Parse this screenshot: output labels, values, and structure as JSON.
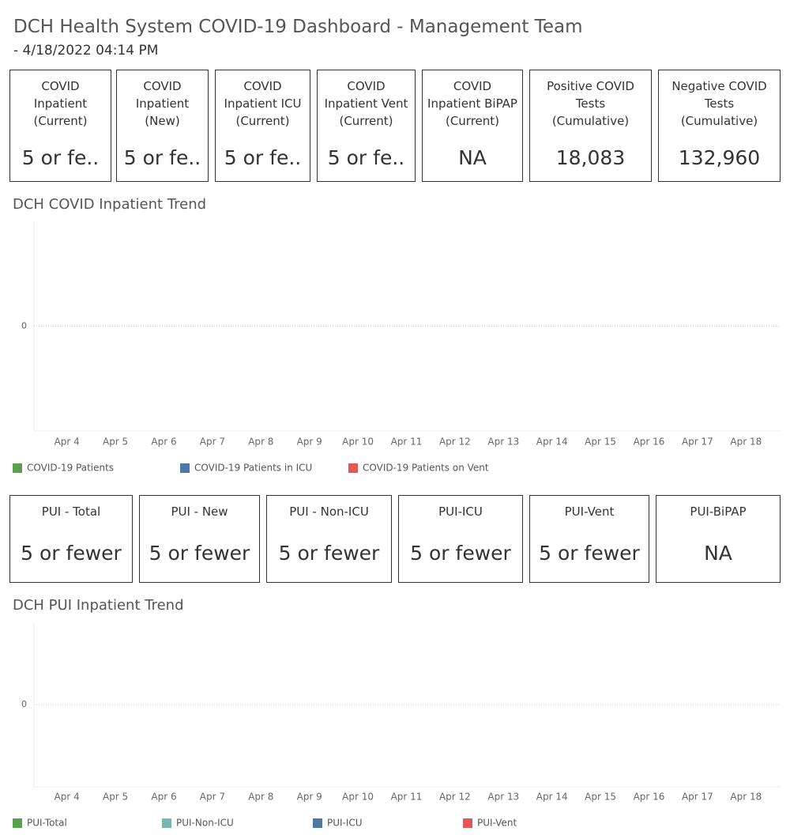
{
  "header": {
    "title": "DCH Health System COVID-19 Dashboard - Management Team",
    "subtitle": "- 4/18/2022 04:14 PM"
  },
  "kpis_top": [
    {
      "label": [
        "COVID",
        "Inpatient",
        "(Current)"
      ],
      "value": "5 or fe.."
    },
    {
      "label": [
        "COVID",
        "Inpatient",
        "(New)"
      ],
      "value": "5 or fe.."
    },
    {
      "label": [
        "COVID",
        "Inpatient ICU",
        "(Current)"
      ],
      "value": "5 or fe.."
    },
    {
      "label": [
        "COVID",
        "Inpatient Vent",
        "(Current)"
      ],
      "value": "5 or fe.."
    },
    {
      "label": [
        "COVID",
        "Inpatient BiPAP",
        "(Current)"
      ],
      "value": "NA"
    },
    {
      "label": [
        "Positive COVID",
        "Tests",
        "(Cumulative)"
      ],
      "value": "18,083"
    },
    {
      "label": [
        "Negative COVID",
        "Tests",
        "(Cumulative)"
      ],
      "value": "132,960"
    }
  ],
  "kpis_pui": [
    {
      "label": [
        "PUI - Total"
      ],
      "value": "5 or fewer"
    },
    {
      "label": [
        "PUI - New"
      ],
      "value": "5 or fewer"
    },
    {
      "label": [
        "PUI - Non-ICU"
      ],
      "value": "5 or fewer"
    },
    {
      "label": [
        "PUI-ICU"
      ],
      "value": "5 or fewer"
    },
    {
      "label": [
        "PUI-Vent"
      ],
      "value": "5 or fewer"
    },
    {
      "label": [
        "PUI-BiPAP"
      ],
      "value": "NA"
    }
  ],
  "chart_data": [
    {
      "type": "line",
      "title": "DCH COVID Inpatient Trend",
      "categories": [
        "Apr 4",
        "Apr 5",
        "Apr 6",
        "Apr 7",
        "Apr 8",
        "Apr 9",
        "Apr 10",
        "Apr 11",
        "Apr 12",
        "Apr 13",
        "Apr 14",
        "Apr 15",
        "Apr 16",
        "Apr 17",
        "Apr 18"
      ],
      "ylim": [
        -1,
        1
      ],
      "yticks": [
        0
      ],
      "series": [
        {
          "name": "COVID-19 Patients",
          "color": "#59a14f",
          "values": [
            null,
            null,
            null,
            null,
            null,
            null,
            null,
            null,
            null,
            null,
            null,
            null,
            null,
            null,
            null
          ]
        },
        {
          "name": "COVID-19 Patients in ICU",
          "color": "#4e79a7",
          "values": [
            null,
            null,
            null,
            null,
            null,
            null,
            null,
            null,
            null,
            null,
            null,
            null,
            null,
            null,
            null
          ]
        },
        {
          "name": "COVID-19 Patients on Vent",
          "color": "#e15759",
          "values": [
            null,
            null,
            null,
            null,
            null,
            null,
            null,
            null,
            null,
            null,
            null,
            null,
            null,
            null,
            null
          ]
        }
      ]
    },
    {
      "type": "line",
      "title": "DCH PUI Inpatient Trend",
      "categories": [
        "Apr 4",
        "Apr 5",
        "Apr 6",
        "Apr 7",
        "Apr 8",
        "Apr 9",
        "Apr 10",
        "Apr 11",
        "Apr 12",
        "Apr 13",
        "Apr 14",
        "Apr 15",
        "Apr 16",
        "Apr 17",
        "Apr 18"
      ],
      "ylim": [
        -1,
        1
      ],
      "yticks": [
        0
      ],
      "series": [
        {
          "name": "PUI-Total",
          "color": "#59a14f",
          "values": [
            null,
            null,
            null,
            null,
            null,
            null,
            null,
            null,
            null,
            null,
            null,
            null,
            null,
            null,
            null
          ]
        },
        {
          "name": "PUI-Non-ICU",
          "color": "#76b7b2",
          "values": [
            null,
            null,
            null,
            null,
            null,
            null,
            null,
            null,
            null,
            null,
            null,
            null,
            null,
            null,
            null
          ]
        },
        {
          "name": "PUI-ICU",
          "color": "#4e79a7",
          "values": [
            null,
            null,
            null,
            null,
            null,
            null,
            null,
            null,
            null,
            null,
            null,
            null,
            null,
            null,
            null
          ]
        },
        {
          "name": "PUI-Vent",
          "color": "#e15759",
          "values": [
            null,
            null,
            null,
            null,
            null,
            null,
            null,
            null,
            null,
            null,
            null,
            null,
            null,
            null,
            null
          ]
        }
      ]
    }
  ]
}
